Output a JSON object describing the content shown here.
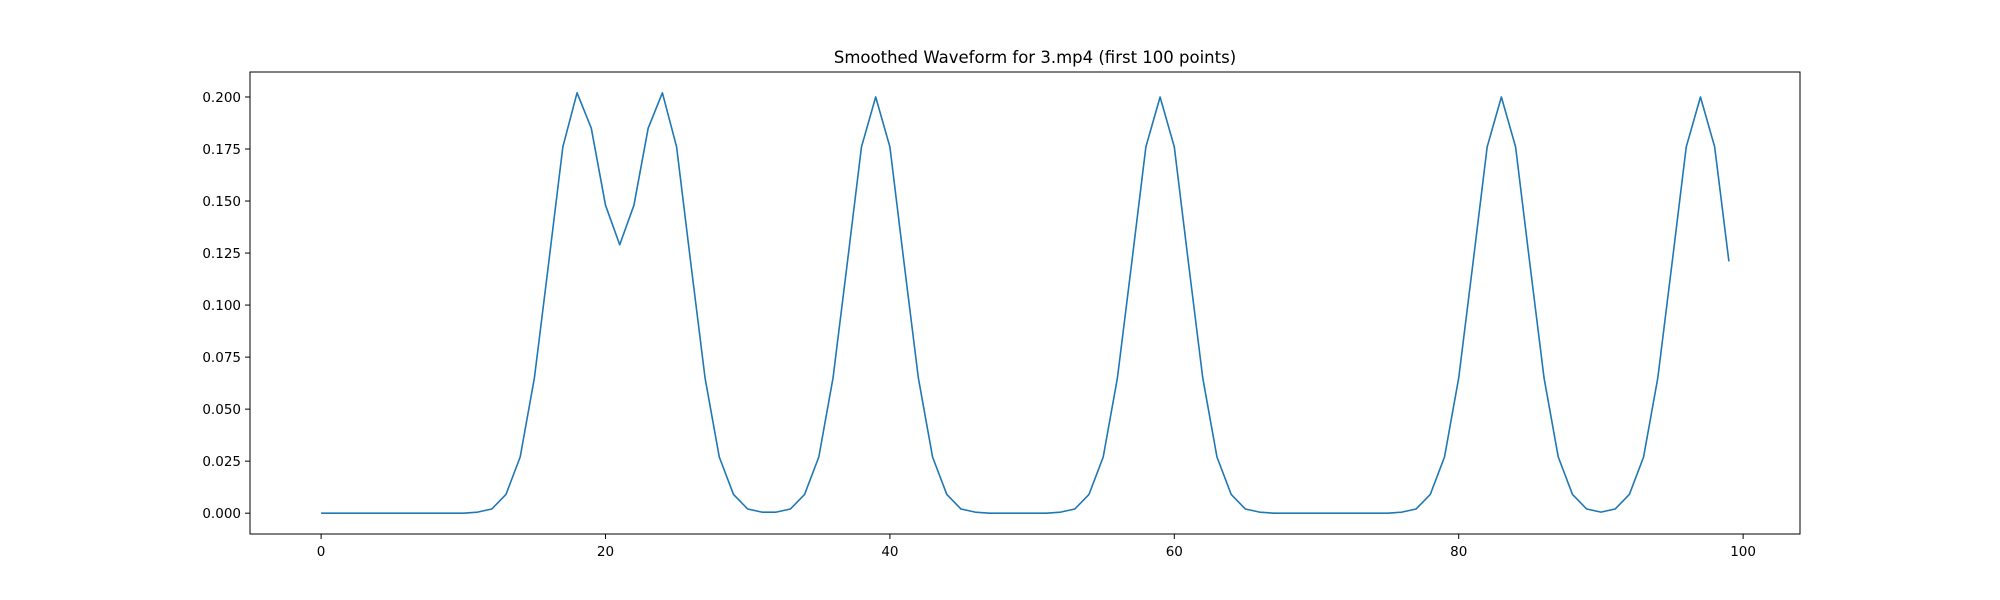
{
  "chart_data": {
    "type": "line",
    "title": "Smoothed Waveform for 3.mp4 (first 100 points)",
    "xlabel": "",
    "ylabel": "",
    "xlim": [
      -5,
      104
    ],
    "ylim": [
      -0.01,
      0.212
    ],
    "grid": false,
    "line_color": "#1f77b4",
    "x_ticks": [
      0,
      20,
      40,
      60,
      80,
      100
    ],
    "x_tick_labels": [
      "0",
      "20",
      "40",
      "60",
      "80",
      "100"
    ],
    "y_ticks": [
      0.0,
      0.025,
      0.05,
      0.075,
      0.1,
      0.125,
      0.15,
      0.175,
      0.2
    ],
    "y_tick_labels": [
      "0.000",
      "0.025",
      "0.050",
      "0.075",
      "0.100",
      "0.125",
      "0.150",
      "0.175",
      "0.200"
    ],
    "series": [
      {
        "values": [
          0,
          0,
          0,
          0,
          0,
          0,
          0,
          0,
          0,
          0,
          0,
          0.0005,
          0.002,
          0.009,
          0.027,
          0.065,
          0.12,
          0.176,
          0.202,
          0.185,
          0.148,
          0.129,
          0.148,
          0.185,
          0.202,
          0.176,
          0.12,
          0.065,
          0.027,
          0.009,
          0.002,
          0.0005,
          0.0005,
          0.002,
          0.009,
          0.027,
          0.065,
          0.12,
          0.176,
          0.2,
          0.176,
          0.12,
          0.065,
          0.027,
          0.009,
          0.002,
          0.0005,
          0,
          0,
          0,
          0,
          0,
          0.0005,
          0.002,
          0.009,
          0.027,
          0.065,
          0.12,
          0.176,
          0.2,
          0.176,
          0.12,
          0.065,
          0.027,
          0.009,
          0.002,
          0.0005,
          0,
          0,
          0,
          0,
          0,
          0,
          0,
          0,
          0,
          0.0005,
          0.002,
          0.009,
          0.027,
          0.065,
          0.12,
          0.176,
          0.2,
          0.176,
          0.12,
          0.065,
          0.027,
          0.009,
          0.002,
          0.0005,
          0.002,
          0.009,
          0.027,
          0.065,
          0.12,
          0.176,
          0.2,
          0.176,
          0.121
        ]
      }
    ]
  }
}
